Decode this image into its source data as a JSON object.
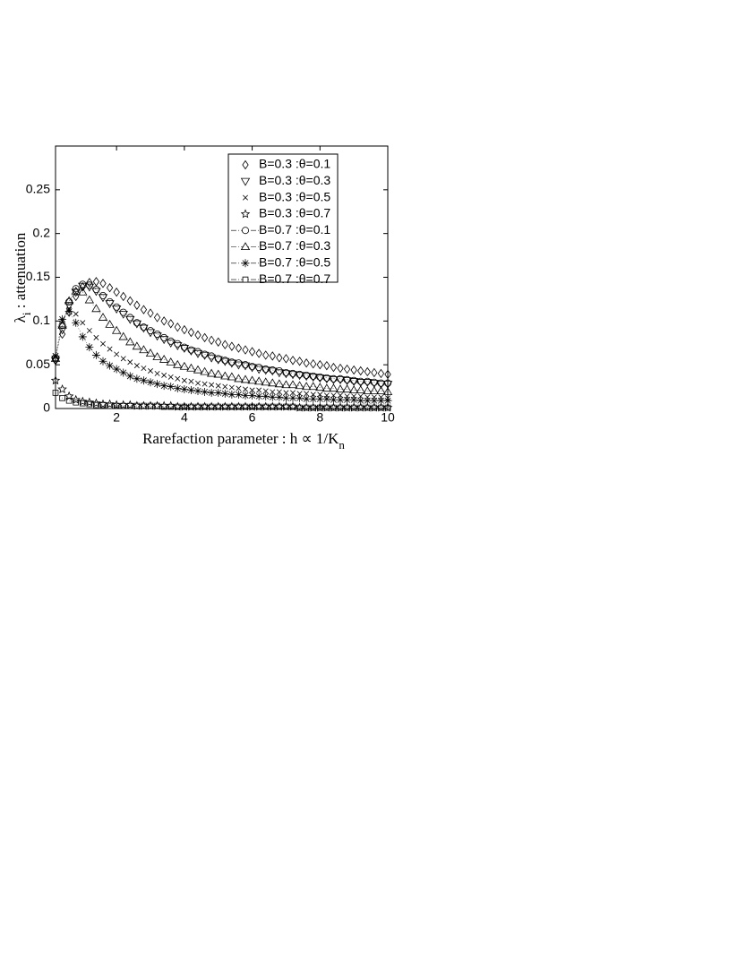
{
  "chart_data": {
    "type": "scatter",
    "xlabel": {
      "text": "Rarefaction parameter : h ∝ 1/K",
      "subscript": "n"
    },
    "ylabel": {
      "symbol": "λ",
      "subscript": "i",
      "text": " : attenuation"
    },
    "xlim": [
      0.2,
      10
    ],
    "ylim": [
      0,
      0.3
    ],
    "xticks": [
      2,
      4,
      6,
      8,
      10
    ],
    "yticks": [
      0,
      0.05,
      0.1,
      0.15,
      0.2,
      0.25
    ],
    "x": [
      0.2,
      0.4,
      0.6,
      0.8,
      1,
      1.2,
      1.4,
      1.6,
      1.8,
      2,
      2.2,
      2.4,
      2.6,
      2.8,
      3,
      3.2,
      3.4,
      3.6,
      3.8,
      4,
      4.2,
      4.4,
      4.6,
      4.8,
      5,
      5.2,
      5.4,
      5.6,
      5.8,
      6,
      6.2,
      6.4,
      6.6,
      6.8,
      7,
      7.2,
      7.4,
      7.6,
      7.8,
      8,
      8.2,
      8.4,
      8.6,
      8.8,
      9,
      9.2,
      9.4,
      9.6,
      9.8,
      10
    ],
    "series": [
      {
        "name": "B=0.3 :θ=0.1",
        "color": "#000000",
        "marker": "diamond",
        "line": false,
        "values": [
          0.055,
          0.085,
          0.11,
          0.128,
          0.139,
          0.144,
          0.145,
          0.143,
          0.138,
          0.133,
          0.128,
          0.123,
          0.118,
          0.113,
          0.109,
          0.104,
          0.1,
          0.097,
          0.093,
          0.09,
          0.087,
          0.084,
          0.081,
          0.078,
          0.076,
          0.073,
          0.071,
          0.069,
          0.067,
          0.065,
          0.063,
          0.061,
          0.06,
          0.058,
          0.057,
          0.055,
          0.054,
          0.052,
          0.051,
          0.05,
          0.049,
          0.047,
          0.046,
          0.045,
          0.044,
          0.043,
          0.042,
          0.041,
          0.04,
          0.039
        ]
      },
      {
        "name": "B=0.3 :θ=0.3",
        "color": "#000000",
        "marker": "triangle-down",
        "line": false,
        "values": [
          0.055,
          0.09,
          0.118,
          0.133,
          0.14,
          0.139,
          0.134,
          0.127,
          0.12,
          0.114,
          0.108,
          0.102,
          0.097,
          0.092,
          0.087,
          0.083,
          0.079,
          0.075,
          0.072,
          0.069,
          0.066,
          0.063,
          0.061,
          0.058,
          0.056,
          0.054,
          0.052,
          0.05,
          0.049,
          0.047,
          0.045,
          0.044,
          0.043,
          0.041,
          0.04,
          0.039,
          0.038,
          0.037,
          0.036,
          0.035,
          0.034,
          0.033,
          0.033,
          0.032,
          0.031,
          0.03,
          0.03,
          0.029,
          0.028,
          0.028
        ]
      },
      {
        "name": "B=0.3 :θ=0.5",
        "color": "#000000",
        "marker": "x",
        "line": false,
        "values": [
          0.06,
          0.1,
          0.113,
          0.108,
          0.098,
          0.089,
          0.081,
          0.074,
          0.068,
          0.062,
          0.057,
          0.053,
          0.049,
          0.046,
          0.043,
          0.04,
          0.038,
          0.036,
          0.034,
          0.032,
          0.031,
          0.029,
          0.028,
          0.027,
          0.026,
          0.025,
          0.024,
          0.023,
          0.022,
          0.021,
          0.021,
          0.02,
          0.019,
          0.019,
          0.018,
          0.018,
          0.017,
          0.017,
          0.016,
          0.016,
          0.015,
          0.015,
          0.015,
          0.014,
          0.014,
          0.014,
          0.013,
          0.013,
          0.013,
          0.012
        ]
      },
      {
        "name": "B=0.3 :θ=0.7",
        "color": "#000000",
        "marker": "star",
        "line": false,
        "values": [
          0.032,
          0.022,
          0.014,
          0.01,
          0.008,
          0.007,
          0.006,
          0.005,
          0.005,
          0.004,
          0.004,
          0.004,
          0.003,
          0.003,
          0.003,
          0.003,
          0.003,
          0.003,
          0.002,
          0.002,
          0.002,
          0.002,
          0.002,
          0.002,
          0.002,
          0.002,
          0.002,
          0.002,
          0.002,
          0.002,
          0.002,
          0.002,
          0.002,
          0.002,
          0.002,
          0.002,
          0.001,
          0.001,
          0.001,
          0.001,
          0.001,
          0.001,
          0.001,
          0.001,
          0.001,
          0.001,
          0.001,
          0.001,
          0.001,
          0.001
        ]
      },
      {
        "name": "B=0.7 :θ=0.1",
        "color": "#000000",
        "marker": "circle",
        "line": true,
        "values": [
          0.058,
          0.095,
          0.122,
          0.137,
          0.142,
          0.141,
          0.136,
          0.129,
          0.122,
          0.116,
          0.11,
          0.104,
          0.098,
          0.093,
          0.089,
          0.085,
          0.081,
          0.077,
          0.074,
          0.07,
          0.067,
          0.065,
          0.062,
          0.06,
          0.057,
          0.055,
          0.053,
          0.052,
          0.05,
          0.048,
          0.047,
          0.045,
          0.044,
          0.043,
          0.041,
          0.04,
          0.039,
          0.038,
          0.037,
          0.036,
          0.035,
          0.034,
          0.034,
          0.033,
          0.032,
          0.031,
          0.031,
          0.03,
          0.029,
          0.029
        ]
      },
      {
        "name": "B=0.7 :θ=0.3",
        "color": "#000000",
        "marker": "triangle-up",
        "line": true,
        "values": [
          0.057,
          0.095,
          0.123,
          0.134,
          0.133,
          0.124,
          0.114,
          0.104,
          0.096,
          0.089,
          0.082,
          0.076,
          0.071,
          0.067,
          0.063,
          0.059,
          0.056,
          0.053,
          0.05,
          0.048,
          0.046,
          0.044,
          0.042,
          0.04,
          0.039,
          0.037,
          0.036,
          0.034,
          0.033,
          0.032,
          0.031,
          0.03,
          0.029,
          0.028,
          0.027,
          0.027,
          0.026,
          0.025,
          0.025,
          0.024,
          0.023,
          0.023,
          0.022,
          0.022,
          0.021,
          0.021,
          0.02,
          0.02,
          0.02,
          0.019
        ]
      },
      {
        "name": "B=0.7 :θ=0.5",
        "color": "#000000",
        "marker": "asterisk",
        "line": true,
        "values": [
          0.06,
          0.102,
          0.111,
          0.098,
          0.082,
          0.07,
          0.061,
          0.054,
          0.049,
          0.045,
          0.041,
          0.037,
          0.034,
          0.032,
          0.03,
          0.028,
          0.026,
          0.025,
          0.023,
          0.022,
          0.021,
          0.02,
          0.019,
          0.018,
          0.018,
          0.017,
          0.016,
          0.016,
          0.015,
          0.015,
          0.014,
          0.014,
          0.013,
          0.013,
          0.012,
          0.012,
          0.012,
          0.011,
          0.011,
          0.011,
          0.011,
          0.01,
          0.01,
          0.01,
          0.01,
          0.009,
          0.009,
          0.009,
          0.009,
          0.009
        ]
      },
      {
        "name": "B=0.7 :θ=0.7",
        "color": "#000000",
        "marker": "square",
        "line": true,
        "values": [
          0.018,
          0.012,
          0.009,
          0.007,
          0.006,
          0.005,
          0.004,
          0.004,
          0.003,
          0.003,
          0.003,
          0.003,
          0.003,
          0.003,
          0.003,
          0.003,
          0.002,
          0.002,
          0.002,
          0.002,
          0.002,
          0.002,
          0.002,
          0.002,
          0.002,
          0.002,
          0.002,
          0.002,
          0.002,
          0.002,
          0.002,
          0.002,
          0.002,
          0.002,
          0.002,
          0.002,
          0.001,
          0.001,
          0.001,
          0.001,
          0.001,
          0.001,
          0.001,
          0.001,
          0.001,
          0.001,
          0.001,
          0.001,
          0.001,
          0.001
        ]
      }
    ]
  }
}
